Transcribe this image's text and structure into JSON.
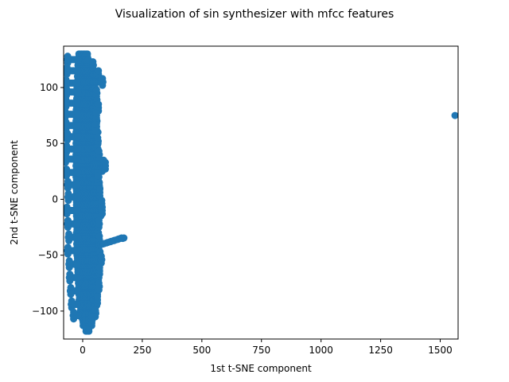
{
  "title": "Visualization of sin synthesizer with mfcc features",
  "chart_data": {
    "type": "scatter",
    "title": "Visualization of sin synthesizer with mfcc features",
    "xlabel": "1st t-SNE component",
    "ylabel": "2nd t-SNE component",
    "xlim": [
      -80,
      1575
    ],
    "ylim": [
      -125,
      137
    ],
    "xticks": [
      0,
      250,
      500,
      750,
      1000,
      1250,
      1500
    ],
    "yticks": [
      -100,
      -50,
      0,
      50,
      100
    ],
    "grid": false,
    "legend": "none",
    "marker_color": "#1f77b4",
    "main_cluster": {
      "description_rows": [
        {
          "y": 125,
          "x_min": -18,
          "x_max": 22
        },
        {
          "y": 120,
          "x_min": -20,
          "x_max": 28
        },
        {
          "y": 110,
          "x_min": -22,
          "x_max": 48
        },
        {
          "y": 100,
          "x_min": -24,
          "x_max": 52
        },
        {
          "y": 90,
          "x_min": -25,
          "x_max": 55
        },
        {
          "y": 80,
          "x_min": -27,
          "x_max": 60
        },
        {
          "y": 70,
          "x_min": -28,
          "x_max": 62
        },
        {
          "y": 60,
          "x_min": -28,
          "x_max": 64
        },
        {
          "y": 50,
          "x_min": -28,
          "x_max": 65
        },
        {
          "y": 40,
          "x_min": -28,
          "x_max": 68
        },
        {
          "y": 30,
          "x_min": -28,
          "x_max": 88
        },
        {
          "y": 20,
          "x_min": -28,
          "x_max": 70
        },
        {
          "y": 10,
          "x_min": -28,
          "x_max": 72
        },
        {
          "y": 0,
          "x_min": -28,
          "x_max": 72
        },
        {
          "y": -10,
          "x_min": -28,
          "x_max": 80
        },
        {
          "y": -20,
          "x_min": -26,
          "x_max": 68
        },
        {
          "y": -30,
          "x_min": -26,
          "x_max": 66
        },
        {
          "y": -40,
          "x_min": -25,
          "x_max": 70
        },
        {
          "y": -50,
          "x_min": -24,
          "x_max": 72
        },
        {
          "y": -60,
          "x_min": -22,
          "x_max": 72
        },
        {
          "y": -70,
          "x_min": -20,
          "x_max": 70
        },
        {
          "y": -80,
          "x_min": -18,
          "x_max": 68
        },
        {
          "y": -90,
          "x_min": -15,
          "x_max": 62
        },
        {
          "y": -100,
          "x_min": -10,
          "x_max": 55
        },
        {
          "y": -108,
          "x_min": 0,
          "x_max": 40
        },
        {
          "y": -113,
          "x_min": 12,
          "x_max": 30
        }
      ],
      "left_jag_points": [
        {
          "x": -65,
          "y": 125
        },
        {
          "x": -68,
          "y": 115
        },
        {
          "x": -72,
          "y": 104
        },
        {
          "x": -70,
          "y": 96
        },
        {
          "x": -72,
          "y": 86
        },
        {
          "x": -76,
          "y": 76
        },
        {
          "x": -72,
          "y": 66
        },
        {
          "x": -66,
          "y": 56
        },
        {
          "x": -70,
          "y": 45
        },
        {
          "x": -74,
          "y": 36
        },
        {
          "x": -70,
          "y": 24
        },
        {
          "x": -64,
          "y": 13
        },
        {
          "x": -62,
          "y": 2
        },
        {
          "x": -68,
          "y": -10
        },
        {
          "x": -64,
          "y": -22
        },
        {
          "x": -60,
          "y": -34
        },
        {
          "x": -64,
          "y": -46
        },
        {
          "x": -58,
          "y": -58
        },
        {
          "x": -56,
          "y": -70
        },
        {
          "x": -52,
          "y": -82
        },
        {
          "x": -48,
          "y": -94
        },
        {
          "x": -40,
          "y": -104
        }
      ],
      "right_jag_points": [
        {
          "x": 45,
          "y": 120
        },
        {
          "x": 68,
          "y": 112
        },
        {
          "x": 85,
          "y": 105
        },
        {
          "x": 60,
          "y": 95
        },
        {
          "x": 62,
          "y": 86
        },
        {
          "x": 68,
          "y": 82
        },
        {
          "x": 58,
          "y": 74
        },
        {
          "x": 55,
          "y": 64
        },
        {
          "x": 65,
          "y": 52
        },
        {
          "x": 70,
          "y": 40
        },
        {
          "x": 90,
          "y": 32
        },
        {
          "x": 97,
          "y": 30
        },
        {
          "x": 66,
          "y": 18
        },
        {
          "x": 74,
          "y": 6
        },
        {
          "x": 82,
          "y": -4
        },
        {
          "x": 84,
          "y": -10
        },
        {
          "x": 70,
          "y": -22
        },
        {
          "x": 72,
          "y": -36
        },
        {
          "x": 75,
          "y": -50
        },
        {
          "x": 80,
          "y": -54
        },
        {
          "x": 73,
          "y": -64
        },
        {
          "x": 70,
          "y": -78
        },
        {
          "x": 64,
          "y": -90
        },
        {
          "x": 55,
          "y": -102
        },
        {
          "x": 40,
          "y": -108
        }
      ]
    },
    "trail": [
      {
        "x": 70,
        "y": -41
      },
      {
        "x": 85,
        "y": -40
      },
      {
        "x": 100,
        "y": -39
      },
      {
        "x": 115,
        "y": -38
      },
      {
        "x": 130,
        "y": -37
      },
      {
        "x": 145,
        "y": -36
      },
      {
        "x": 158,
        "y": -35
      },
      {
        "x": 168,
        "y": -35
      }
    ],
    "outlier": {
      "x": 1562,
      "y": 75
    }
  }
}
